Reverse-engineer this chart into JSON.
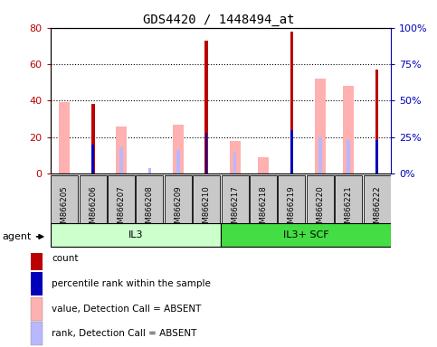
{
  "title": "GDS4420 / 1448494_at",
  "categories": [
    "GSM866205",
    "GSM866206",
    "GSM866207",
    "GSM866208",
    "GSM866209",
    "GSM866210",
    "GSM866217",
    "GSM866218",
    "GSM866219",
    "GSM866220",
    "GSM866221",
    "GSM866222"
  ],
  "ylim_left": [
    0,
    80
  ],
  "ylim_right": [
    0,
    100
  ],
  "left_ticks": [
    0,
    20,
    40,
    60,
    80
  ],
  "right_ticks": [
    0,
    25,
    50,
    75,
    100
  ],
  "left_tick_labels": [
    "0",
    "20",
    "40",
    "60",
    "80"
  ],
  "right_tick_labels": [
    "0%",
    "25%",
    "50%",
    "75%",
    "100%"
  ],
  "count": [
    null,
    38,
    null,
    null,
    null,
    73,
    null,
    null,
    78,
    null,
    null,
    57
  ],
  "percentile_rank": [
    null,
    20,
    null,
    null,
    null,
    28,
    null,
    null,
    30,
    null,
    null,
    23
  ],
  "value_absent": [
    39,
    null,
    26,
    null,
    27,
    null,
    18,
    9,
    null,
    52,
    48,
    null
  ],
  "rank_absent": [
    null,
    null,
    18,
    4,
    16,
    null,
    14,
    null,
    null,
    25,
    23,
    null
  ],
  "color_count": "#bb0000",
  "color_percentile": "#0000bb",
  "color_value_absent": "#ffb0b0",
  "color_rank_absent": "#b8b8ff",
  "groups": [
    {
      "label": "IL3",
      "start": 0,
      "end": 5,
      "color": "#ccffcc"
    },
    {
      "label": "IL3+ SCF",
      "start": 6,
      "end": 11,
      "color": "#44dd44"
    }
  ],
  "legend_items": [
    {
      "label": "count",
      "color": "#bb0000"
    },
    {
      "label": "percentile rank within the sample",
      "color": "#0000bb"
    },
    {
      "label": "value, Detection Call = ABSENT",
      "color": "#ffb0b0"
    },
    {
      "label": "rank, Detection Call = ABSENT",
      "color": "#b8b8ff"
    }
  ]
}
